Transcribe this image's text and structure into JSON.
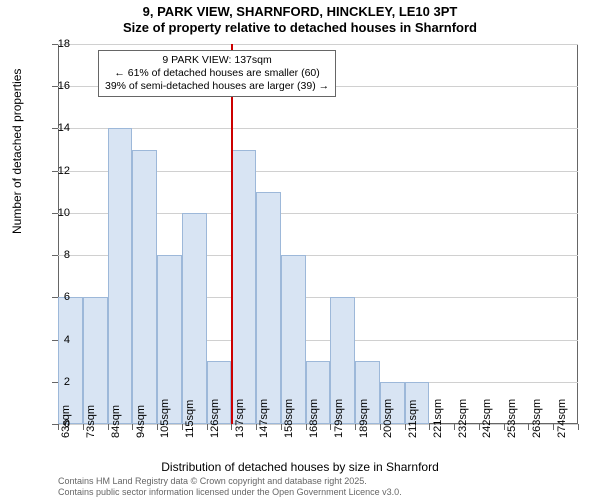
{
  "title_line1": "9, PARK VIEW, SHARNFORD, HINCKLEY, LE10 3PT",
  "title_line2": "Size of property relative to detached houses in Sharnford",
  "y_axis_label": "Number of detached properties",
  "x_axis_label": "Distribution of detached houses by size in Sharnford",
  "attribution_line1": "Contains HM Land Registry data © Crown copyright and database right 2025.",
  "attribution_line2": "Contains public sector information licensed under the Open Government Licence v3.0.",
  "annotation": {
    "line1": "9 PARK VIEW: 137sqm",
    "line2": "← 61% of detached houses are smaller (60)",
    "line3": "39% of semi-detached houses are larger (39) →"
  },
  "chart": {
    "type": "histogram",
    "ylim": [
      0,
      18
    ],
    "ytick_step": 2,
    "y_ticks": [
      0,
      2,
      4,
      6,
      8,
      10,
      12,
      14,
      16,
      18
    ],
    "x_tick_labels": [
      "63sqm",
      "73sqm",
      "84sqm",
      "94sqm",
      "105sqm",
      "115sqm",
      "126sqm",
      "137sqm",
      "147sqm",
      "158sqm",
      "168sqm",
      "179sqm",
      "189sqm",
      "200sqm",
      "211sqm",
      "221sqm",
      "232sqm",
      "242sqm",
      "253sqm",
      "263sqm",
      "274sqm"
    ],
    "values": [
      6,
      6,
      14,
      13,
      8,
      10,
      3,
      13,
      11,
      8,
      3,
      6,
      3,
      2,
      2,
      0,
      0,
      0,
      0,
      0,
      0
    ],
    "bar_fill": "#d8e4f3",
    "bar_stroke": "#9db8d9",
    "grid_color": "#d0d0d0",
    "background_color": "#ffffff",
    "reference_line": {
      "x_index": 7,
      "color": "#cc0000",
      "width": 2
    },
    "bar_width_ratio": 1.0
  },
  "fonts": {
    "title_size_pt": 13,
    "axis_label_size_pt": 12,
    "tick_label_size_pt": 11,
    "annotation_size_pt": 10.5,
    "attribution_size_pt": 9
  }
}
